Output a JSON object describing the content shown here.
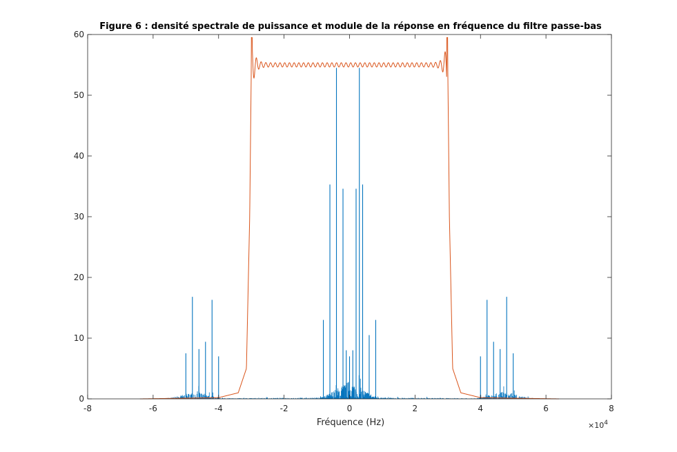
{
  "chart_data": {
    "type": "line",
    "title": "Figure 6 : densité spectrale de puissance et module de la réponse en fréquence du filtre passe-bas",
    "xlabel": "Fréquence (Hz)",
    "ylabel": "",
    "x_exponent_label": "×10",
    "x_exponent_power": "4",
    "xlim": [
      -80000,
      80000
    ],
    "ylim": [
      0,
      60
    ],
    "x_ticks": [
      -80000,
      -60000,
      -40000,
      -20000,
      0,
      20000,
      40000,
      60000,
      80000
    ],
    "x_tick_labels": [
      "-8",
      "-6",
      "-4",
      "-2",
      "0",
      "2",
      "4",
      "6",
      "8"
    ],
    "y_ticks": [
      0,
      10,
      20,
      30,
      40,
      50,
      60
    ],
    "y_tick_labels": [
      "0",
      "10",
      "20",
      "30",
      "40",
      "50",
      "60"
    ],
    "grid": false,
    "legend": "none",
    "series": [
      {
        "style": "stem",
        "color": "#0072BD",
        "x": [
          -50000,
          -48000,
          -46000,
          -44000,
          -42000,
          -40000,
          -8000,
          -6000,
          -4000,
          -2000,
          -1000,
          0,
          1000,
          2000,
          3000,
          4000,
          6000,
          8000,
          40000,
          42000,
          44000,
          46000,
          48000,
          50000
        ],
        "y": [
          7.5,
          16.8,
          8.2,
          9.4,
          16.3,
          7.0,
          13.0,
          35.3,
          54.5,
          34.6,
          8.0,
          7.0,
          8.0,
          34.6,
          54.5,
          35.3,
          10.5,
          13.0,
          7.0,
          16.3,
          9.4,
          8.2,
          16.8,
          7.5
        ]
      },
      {
        "style": "line",
        "color": "#D95319",
        "x": [
          -64000,
          -40000,
          -34000,
          -31500,
          -30500,
          -30000,
          30000,
          30500,
          31500,
          34000,
          40000,
          64000
        ],
        "y": [
          0,
          0.2,
          1.0,
          5.0,
          30.0,
          55.0,
          55.0,
          30.0,
          5.0,
          1.0,
          0.2,
          0
        ]
      }
    ]
  }
}
